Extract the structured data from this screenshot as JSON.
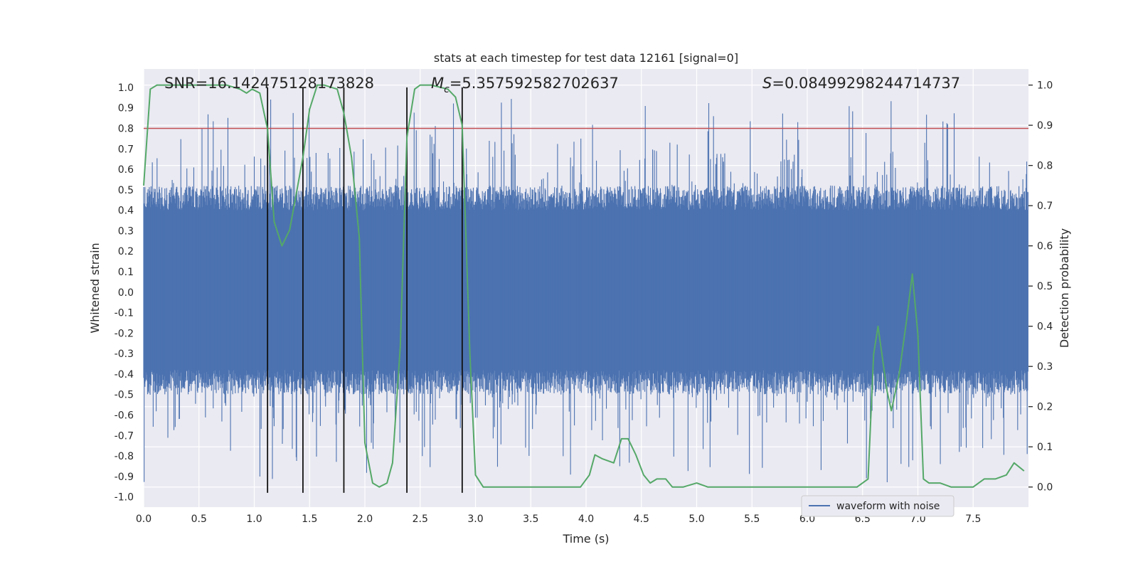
{
  "chart_data": {
    "type": "line",
    "title": "stats at each timestep for test data 12161 [signal=0]",
    "xlabel": "Time (s)",
    "ylabel": "Whitened strain",
    "ylabel_right": "Detection probability",
    "xlim": [
      0.0,
      8.0
    ],
    "ylim": [
      -1.05,
      1.09
    ],
    "ylim_right": [
      -0.05,
      1.04
    ],
    "x_ticks": [
      0.0,
      0.5,
      1.0,
      1.5,
      2.0,
      2.5,
      3.0,
      3.5,
      4.0,
      4.5,
      5.0,
      5.5,
      6.0,
      6.5,
      7.0,
      7.5
    ],
    "x_tick_labels": [
      "0.0",
      "0.5",
      "1.0",
      "1.5",
      "2.0",
      "2.5",
      "3.0",
      "3.5",
      "4.0",
      "4.5",
      "5.0",
      "5.5",
      "6.0",
      "6.5",
      "7.0",
      "7.5"
    ],
    "y_ticks": [
      -1.0,
      -0.9,
      -0.8,
      -0.7,
      -0.6,
      -0.5,
      -0.4,
      -0.3,
      -0.2,
      -0.1,
      0.0,
      0.1,
      0.2,
      0.3,
      0.4,
      0.5,
      0.6,
      0.7,
      0.8,
      0.9,
      1.0
    ],
    "y_tick_labels": [
      "-1.0",
      "-0.9",
      "-0.8",
      "-0.7",
      "-0.6",
      "-0.5",
      "-0.4",
      "-0.3",
      "-0.2",
      "-0.1",
      "0.0",
      "0.1",
      "0.2",
      "0.3",
      "0.4",
      "0.5",
      "0.6",
      "0.7",
      "0.8",
      "0.9",
      "1.0"
    ],
    "y_right_ticks": [
      0.0,
      0.1,
      0.2,
      0.3,
      0.4,
      0.5,
      0.6,
      0.7,
      0.8,
      0.9,
      1.0
    ],
    "y_right_tick_labels": [
      "0.0",
      "0.1",
      "0.2",
      "0.3",
      "0.4",
      "0.5",
      "0.6",
      "0.7",
      "0.8",
      "0.9",
      "1.0"
    ],
    "grid": true,
    "annotations": {
      "snr": "SNR=16.142475128173828",
      "mc_symbol": "M",
      "mc_subscript": "c",
      "mc_value": "=5.357592582702637",
      "s_symbol": "S",
      "s_value": "=0.08499298244714737"
    },
    "threshold": {
      "value": 0.8,
      "color": "#c44e52"
    },
    "vertical_lines": [
      1.12,
      1.44,
      1.81,
      2.38,
      2.88
    ],
    "vertical_line_range": [
      -0.98,
      1.0
    ],
    "waveform": {
      "name": "waveform with noise",
      "color": "#4c72b0",
      "seed": 12161,
      "samples": 2048,
      "core_band": [
        -0.38,
        0.4
      ],
      "spike_envelope": [
        -0.96,
        1.0
      ]
    },
    "probability": {
      "name": "detection probability",
      "color": "#55a868",
      "x": [
        0.0,
        0.06,
        0.12,
        0.25,
        0.5,
        0.75,
        0.87,
        0.93,
        0.98,
        1.05,
        1.12,
        1.18,
        1.25,
        1.32,
        1.38,
        1.44,
        1.5,
        1.57,
        1.63,
        1.75,
        1.81,
        1.88,
        1.95,
        2.0,
        2.07,
        2.13,
        2.2,
        2.25,
        2.32,
        2.38,
        2.45,
        2.5,
        2.6,
        2.75,
        2.82,
        2.88,
        2.95,
        3.0,
        3.07,
        3.2,
        3.5,
        3.8,
        3.95,
        4.03,
        4.08,
        4.15,
        4.25,
        4.32,
        4.38,
        4.45,
        4.52,
        4.58,
        4.64,
        4.72,
        4.78,
        4.88,
        5.0,
        5.1,
        5.2,
        5.3,
        5.4,
        5.5,
        5.6,
        5.65,
        5.75,
        5.8,
        5.9,
        6.0,
        6.1,
        6.2,
        6.3,
        6.45,
        6.55,
        6.6,
        6.64,
        6.72,
        6.76,
        6.83,
        6.9,
        6.95,
        7.0,
        7.05,
        7.1,
        7.2,
        7.3,
        7.4,
        7.5,
        7.55,
        7.6,
        7.7,
        7.8,
        7.87,
        7.96
      ],
      "values": [
        0.75,
        0.99,
        1.0,
        1.0,
        1.0,
        1.0,
        0.99,
        0.98,
        0.99,
        0.98,
        0.89,
        0.66,
        0.6,
        0.64,
        0.73,
        0.82,
        0.94,
        1.0,
        1.0,
        0.99,
        0.93,
        0.82,
        0.62,
        0.11,
        0.01,
        0.0,
        0.01,
        0.06,
        0.35,
        0.87,
        0.99,
        1.0,
        1.0,
        0.99,
        0.97,
        0.9,
        0.33,
        0.03,
        0.0,
        0.0,
        0.0,
        0.0,
        0.0,
        0.03,
        0.08,
        0.07,
        0.06,
        0.12,
        0.12,
        0.08,
        0.03,
        0.01,
        0.02,
        0.02,
        0.0,
        0.0,
        0.01,
        0.0,
        0.0,
        0.0,
        0.0,
        0.0,
        0.0,
        0.0,
        0.0,
        0.0,
        0.0,
        0.0,
        0.0,
        0.0,
        0.0,
        0.0,
        0.02,
        0.33,
        0.4,
        0.24,
        0.19,
        0.28,
        0.42,
        0.53,
        0.38,
        0.02,
        0.01,
        0.01,
        0.0,
        0.0,
        0.0,
        0.01,
        0.02,
        0.02,
        0.03,
        0.06,
        0.04
      ]
    },
    "legend": {
      "label": "waveform with noise",
      "placement": "lower-right"
    }
  }
}
